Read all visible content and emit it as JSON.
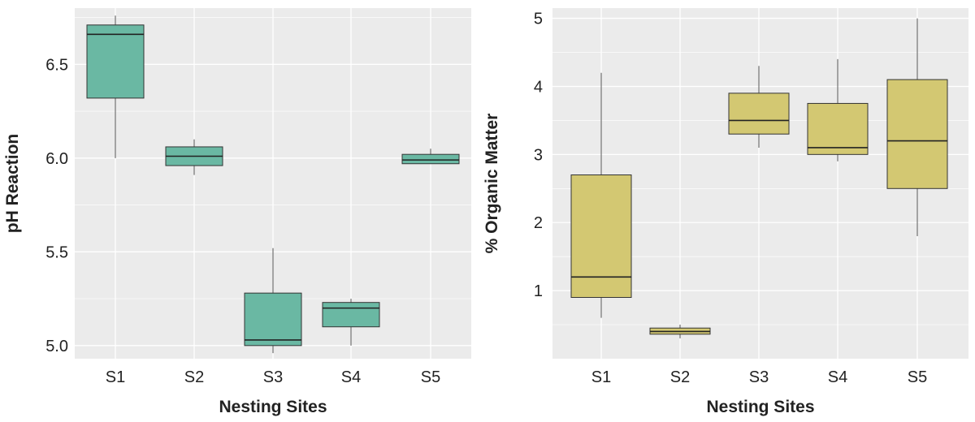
{
  "chart_data": [
    {
      "type": "box",
      "title": "",
      "xlabel": "Nesting Sites",
      "ylabel": "pH Reaction",
      "ylim": [
        4.93,
        6.8
      ],
      "y_ticks": [
        5.0,
        5.5,
        6.0,
        6.5
      ],
      "y_tick_labels": [
        "5.0",
        "5.5",
        "6.0",
        "6.5"
      ],
      "categories": [
        "S1",
        "S2",
        "S3",
        "S4",
        "S5"
      ],
      "color": "#6ab8a3",
      "grid": true,
      "boxes": [
        {
          "site": "S1",
          "min": 6.0,
          "q1": 6.32,
          "median": 6.66,
          "q3": 6.71,
          "max": 6.76
        },
        {
          "site": "S2",
          "min": 5.91,
          "q1": 5.96,
          "median": 6.01,
          "q3": 6.06,
          "max": 6.1
        },
        {
          "site": "S3",
          "min": 4.96,
          "q1": 5.0,
          "median": 5.03,
          "q3": 5.28,
          "max": 5.52
        },
        {
          "site": "S4",
          "min": 5.0,
          "q1": 5.1,
          "median": 5.2,
          "q3": 5.23,
          "max": 5.25
        },
        {
          "site": "S5",
          "min": 5.97,
          "q1": 5.97,
          "median": 5.99,
          "q3": 6.02,
          "max": 6.05
        }
      ]
    },
    {
      "type": "box",
      "title": "",
      "xlabel": "Nesting Sites",
      "ylabel": "% Organic Matter",
      "ylim": [
        0.0,
        5.15
      ],
      "y_ticks": [
        1,
        2,
        3,
        4,
        5
      ],
      "y_tick_labels": [
        "1",
        "2",
        "3",
        "4",
        "5"
      ],
      "categories": [
        "S1",
        "S2",
        "S3",
        "S4",
        "S5"
      ],
      "color": "#d3c872",
      "grid": true,
      "boxes": [
        {
          "site": "S1",
          "min": 0.6,
          "q1": 0.9,
          "median": 1.2,
          "q3": 2.7,
          "max": 4.2
        },
        {
          "site": "S2",
          "min": 0.3,
          "q1": 0.36,
          "median": 0.4,
          "q3": 0.45,
          "max": 0.5
        },
        {
          "site": "S3",
          "min": 3.1,
          "q1": 3.3,
          "median": 3.5,
          "q3": 3.9,
          "max": 4.3
        },
        {
          "site": "S4",
          "min": 2.9,
          "q1": 3.0,
          "median": 3.1,
          "q3": 3.75,
          "max": 4.4
        },
        {
          "site": "S5",
          "min": 1.8,
          "q1": 2.5,
          "median": 3.2,
          "q3": 4.1,
          "max": 5.0
        }
      ]
    }
  ]
}
